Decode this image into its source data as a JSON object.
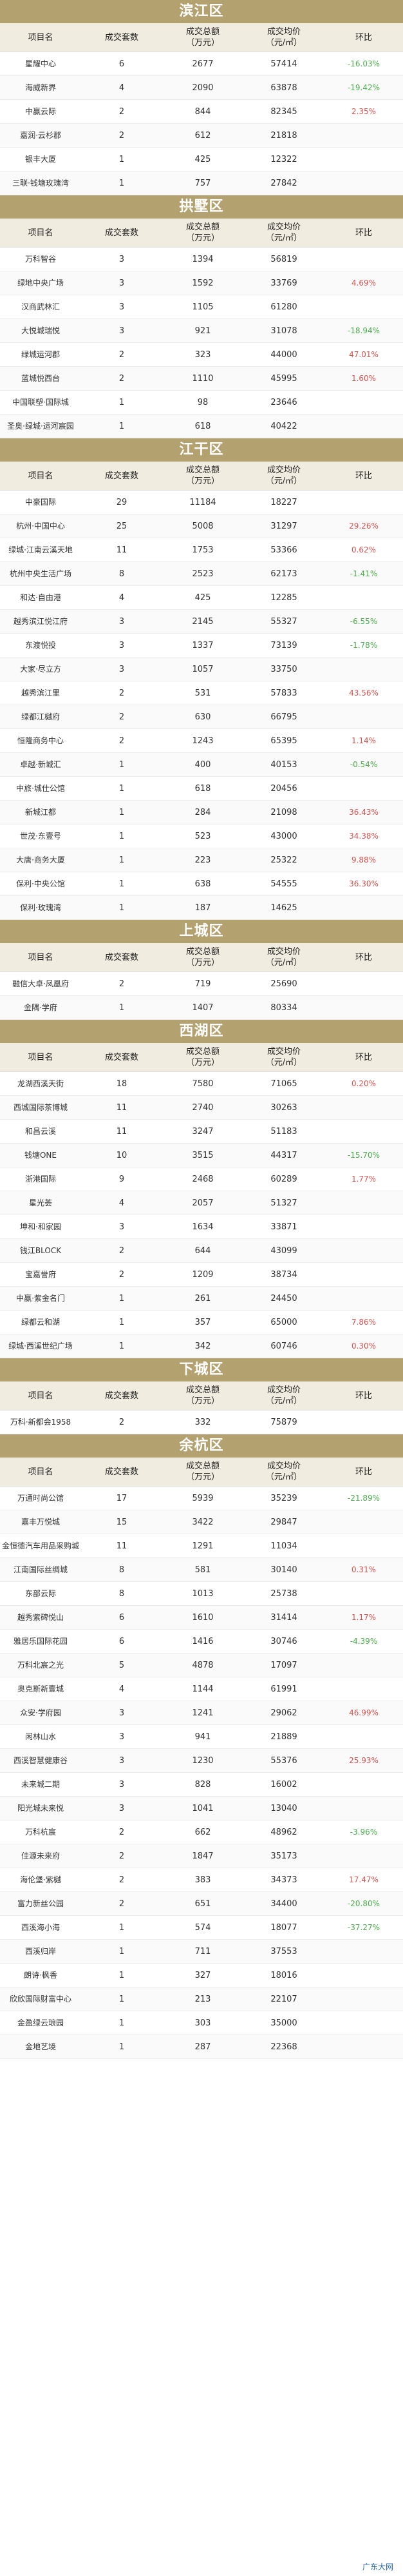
{
  "headers": [
    "项目名",
    "成交套数",
    "成交总额\n（万元）",
    "成交均价\n（元/㎡）",
    "环比"
  ],
  "colors": {
    "section_bg": "#b3a270",
    "header_bg": "#f0ecdf",
    "up": "#d9534f",
    "down": "#4cae4c"
  },
  "districts": [
    {
      "name": "滨江区",
      "rows": [
        [
          "星耀中心",
          "6",
          "2677",
          "57414",
          "-16.03%"
        ],
        [
          "海威新界",
          "4",
          "2090",
          "63878",
          "-19.42%"
        ],
        [
          "中赢云际",
          "2",
          "844",
          "82345",
          "2.35%"
        ],
        [
          "嘉润·云杉郡",
          "2",
          "612",
          "21818",
          ""
        ],
        [
          "银丰大厦",
          "1",
          "425",
          "12322",
          ""
        ],
        [
          "三联·钱塘玫瑰湾",
          "1",
          "757",
          "27842",
          ""
        ]
      ]
    },
    {
      "name": "拱墅区",
      "rows": [
        [
          "万科智谷",
          "3",
          "1394",
          "56819",
          ""
        ],
        [
          "绿地中央广场",
          "3",
          "1592",
          "33769",
          "4.69%"
        ],
        [
          "汉商武林汇",
          "3",
          "1105",
          "61280",
          ""
        ],
        [
          "大悦城瑞悦",
          "3",
          "921",
          "31078",
          "-18.94%"
        ],
        [
          "绿城运河郡",
          "2",
          "323",
          "44000",
          "47.01%"
        ],
        [
          "蓝城悦西台",
          "2",
          "1110",
          "45995",
          "1.60%"
        ],
        [
          "中国联塑·国际城",
          "1",
          "98",
          "23646",
          ""
        ],
        [
          "圣奥·绿城·运河宸园",
          "1",
          "618",
          "40422",
          ""
        ]
      ]
    },
    {
      "name": "江干区",
      "rows": [
        [
          "中豪国际",
          "29",
          "11184",
          "18227",
          ""
        ],
        [
          "杭州·中国中心",
          "25",
          "5008",
          "31297",
          "29.26%"
        ],
        [
          "绿城·江南云溪天地",
          "11",
          "1753",
          "53366",
          "0.62%"
        ],
        [
          "杭州中央生活广场",
          "8",
          "2523",
          "62173",
          "-1.41%"
        ],
        [
          "和达·自由港",
          "4",
          "425",
          "12285",
          ""
        ],
        [
          "越秀滨江悦江府",
          "3",
          "2145",
          "55327",
          "-6.55%"
        ],
        [
          "东渡悦投",
          "3",
          "1337",
          "73139",
          "-1.78%"
        ],
        [
          "大家·尽立方",
          "3",
          "1057",
          "33750",
          ""
        ],
        [
          "越秀滨江里",
          "2",
          "531",
          "57833",
          "43.56%"
        ],
        [
          "绿都江樾府",
          "2",
          "630",
          "66795",
          ""
        ],
        [
          "恒隆商务中心",
          "2",
          "1243",
          "65395",
          "1.14%"
        ],
        [
          "卓越·新城汇",
          "1",
          "400",
          "40153",
          "-0.54%"
        ],
        [
          "中旅·城仕公馆",
          "1",
          "618",
          "20456",
          ""
        ],
        [
          "新城江都",
          "1",
          "284",
          "21098",
          "36.43%"
        ],
        [
          "世茂·东壹号",
          "1",
          "523",
          "43000",
          "34.38%"
        ],
        [
          "大唐·商务大厦",
          "1",
          "223",
          "25322",
          "9.88%"
        ],
        [
          "保利·中央公馆",
          "1",
          "638",
          "54555",
          "36.30%"
        ],
        [
          "保利·玫瑰湾",
          "1",
          "187",
          "14625",
          ""
        ]
      ]
    },
    {
      "name": "上城区",
      "rows": [
        [
          "融信大卓·凤凰府",
          "2",
          "719",
          "25690",
          ""
        ],
        [
          "金隅·学府",
          "1",
          "1407",
          "80334",
          ""
        ]
      ]
    },
    {
      "name": "西湖区",
      "rows": [
        [
          "龙湖西溪天街",
          "18",
          "7580",
          "71065",
          "0.20%"
        ],
        [
          "西城国际茶博城",
          "11",
          "2740",
          "30263",
          ""
        ],
        [
          "和昌云溪",
          "11",
          "3247",
          "51183",
          ""
        ],
        [
          "钱塘ONE",
          "10",
          "3515",
          "44317",
          "-15.70%"
        ],
        [
          "浙港国际",
          "9",
          "2468",
          "60289",
          "1.77%"
        ],
        [
          "星光荟",
          "4",
          "2057",
          "51327",
          ""
        ],
        [
          "坤和·和家园",
          "3",
          "1634",
          "33871",
          ""
        ],
        [
          "钱江BLOCK",
          "2",
          "644",
          "43099",
          ""
        ],
        [
          "宝嘉誉府",
          "2",
          "1209",
          "38734",
          ""
        ],
        [
          "中赢·紫金名门",
          "1",
          "261",
          "24450",
          ""
        ],
        [
          "绿都云和湖",
          "1",
          "357",
          "65000",
          "7.86%"
        ],
        [
          "绿城·西溪世纪广场",
          "1",
          "342",
          "60746",
          "0.30%"
        ]
      ]
    },
    {
      "name": "下城区",
      "rows": [
        [
          "万科·新都会1958",
          "2",
          "332",
          "75879",
          ""
        ]
      ]
    },
    {
      "name": "余杭区",
      "rows": [
        [
          "万通时尚公馆",
          "17",
          "5939",
          "35239",
          "-21.89%"
        ],
        [
          "嘉丰万悦城",
          "15",
          "3422",
          "29847",
          ""
        ],
        [
          "金恒德汽车用品采购城",
          "11",
          "1291",
          "11034",
          ""
        ],
        [
          "江南国际丝绸城",
          "8",
          "581",
          "30140",
          "0.31%"
        ],
        [
          "东部云际",
          "8",
          "1013",
          "25738",
          ""
        ],
        [
          "越秀紫碑悦山",
          "6",
          "1610",
          "31414",
          "1.17%"
        ],
        [
          "雅居乐国际花园",
          "6",
          "1416",
          "30746",
          "-4.39%"
        ],
        [
          "万科北宸之光",
          "5",
          "4878",
          "17097",
          ""
        ],
        [
          "奥克斯新壹城",
          "4",
          "1144",
          "61991",
          ""
        ],
        [
          "众安·学府园",
          "3",
          "1241",
          "29062",
          "46.99%"
        ],
        [
          "闲林山水",
          "3",
          "941",
          "21889",
          ""
        ],
        [
          "西溪智慧健康谷",
          "3",
          "1230",
          "55376",
          "25.93%"
        ],
        [
          "未来城二期",
          "3",
          "828",
          "16002",
          ""
        ],
        [
          "阳光城未来悦",
          "3",
          "1041",
          "13040",
          ""
        ],
        [
          "万科杭宸",
          "2",
          "662",
          "48962",
          "-3.96%"
        ],
        [
          "佳源未来府",
          "2",
          "1847",
          "35173",
          ""
        ],
        [
          "海伦堡·紫樾",
          "2",
          "383",
          "34373",
          "17.47%"
        ],
        [
          "富力新丝公园",
          "2",
          "651",
          "34400",
          "-20.80%"
        ],
        [
          "西溪海小海",
          "1",
          "574",
          "18077",
          "-37.27%"
        ],
        [
          "西溪归岸",
          "1",
          "711",
          "37553",
          ""
        ],
        [
          "朗诗·枫香",
          "1",
          "327",
          "18016",
          ""
        ],
        [
          "欣欣国际财富中心",
          "1",
          "213",
          "22107",
          ""
        ],
        [
          "金盈绿云琅园",
          "1",
          "303",
          "35000",
          ""
        ],
        [
          "金地艺境",
          "1",
          "287",
          "22368",
          ""
        ]
      ]
    }
  ],
  "watermark": "广东大网"
}
